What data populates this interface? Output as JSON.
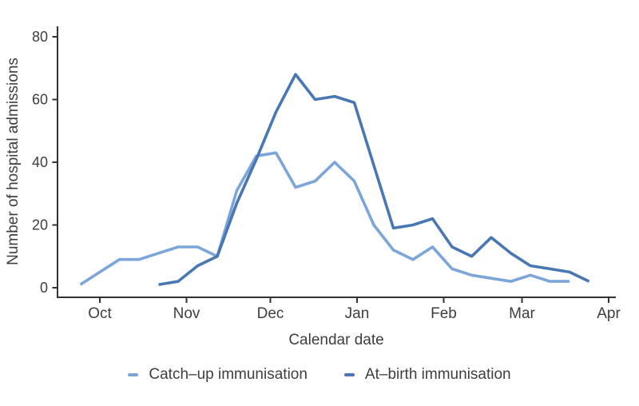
{
  "chart_data": {
    "type": "line",
    "title": "",
    "xlabel": "Calendar date",
    "ylabel": "Number of hospital admissions",
    "x_tick_labels": [
      "Oct",
      "Nov",
      "Dec",
      "Jan",
      "Feb",
      "Mar",
      "Apr"
    ],
    "y_ticks": [
      0,
      20,
      40,
      60,
      80
    ],
    "ylim": [
      0,
      80
    ],
    "grid": false,
    "legend_position": "bottom",
    "axis_color": "#333333",
    "text_color": "#3e3e3e",
    "series": [
      {
        "name": "Catch–up immunisation",
        "color": "#7CA6D9",
        "points": [
          [
            "Sep 24",
            1
          ],
          [
            "Oct 1",
            5
          ],
          [
            "Oct 8",
            9
          ],
          [
            "Oct 15",
            9
          ],
          [
            "Oct 22",
            11
          ],
          [
            "Oct 29",
            13
          ],
          [
            "Nov 5",
            13
          ],
          [
            "Nov 12",
            10
          ],
          [
            "Nov 19",
            31
          ],
          [
            "Nov 26",
            42
          ],
          [
            "Dec 3",
            43
          ],
          [
            "Dec 10",
            32
          ],
          [
            "Dec 17",
            34
          ],
          [
            "Dec 24",
            40
          ],
          [
            "Dec 31",
            34
          ],
          [
            "Jan 7",
            20
          ],
          [
            "Jan 14",
            12
          ],
          [
            "Jan 21",
            9
          ],
          [
            "Jan 28",
            13
          ],
          [
            "Feb 4",
            6
          ],
          [
            "Feb 11",
            4
          ],
          [
            "Feb 18",
            3
          ],
          [
            "Feb 25",
            2
          ],
          [
            "Mar 4",
            4
          ],
          [
            "Mar 11",
            2
          ],
          [
            "Mar 18",
            2
          ]
        ]
      },
      {
        "name": "At–birth immunisation",
        "color": "#4877B3",
        "points": [
          [
            "Oct 22",
            1
          ],
          [
            "Oct 29",
            2
          ],
          [
            "Nov 5",
            7
          ],
          [
            "Nov 12",
            10
          ],
          [
            "Nov 19",
            27
          ],
          [
            "Nov 26",
            41
          ],
          [
            "Dec 3",
            56
          ],
          [
            "Dec 10",
            68
          ],
          [
            "Dec 17",
            60
          ],
          [
            "Dec 24",
            61
          ],
          [
            "Dec 31",
            59
          ],
          [
            "Jan 7",
            39
          ],
          [
            "Jan 14",
            19
          ],
          [
            "Jan 21",
            20
          ],
          [
            "Jan 28",
            22
          ],
          [
            "Feb 4",
            13
          ],
          [
            "Feb 11",
            10
          ],
          [
            "Feb 18",
            16
          ],
          [
            "Feb 25",
            11
          ],
          [
            "Mar 4",
            7
          ],
          [
            "Mar 11",
            6
          ],
          [
            "Mar 18",
            5
          ],
          [
            "Mar 25",
            2
          ]
        ]
      }
    ]
  }
}
